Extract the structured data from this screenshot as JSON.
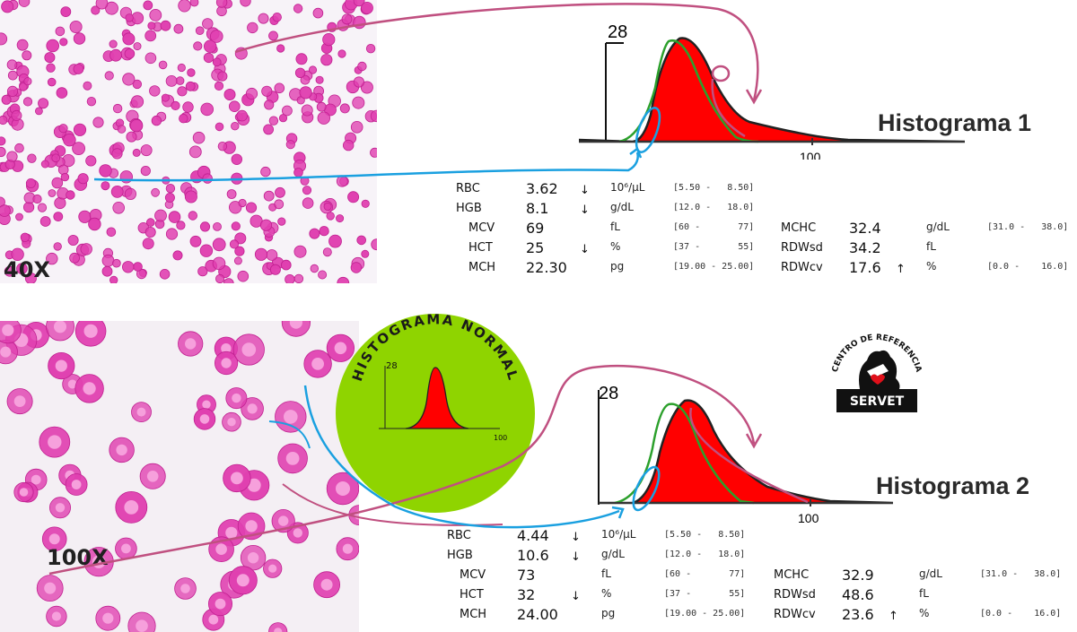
{
  "panels": {
    "top_magnification": "40X",
    "bottom_magnification": "100X"
  },
  "histogram1": {
    "title": "Histograma 1",
    "y_tick": "28",
    "x_tick": "100"
  },
  "histogram2": {
    "title": "Histograma 2",
    "y_tick": "28",
    "x_tick": "100"
  },
  "normal_badge": {
    "title": "HISTOGRAMA NORMAL",
    "y_tick": "28",
    "x_tick": "100"
  },
  "logo": {
    "arc_text": "CENTRO DE REFERENCIA",
    "name": "SERVET"
  },
  "table1": {
    "rows": [
      {
        "label": "RBC",
        "value": "3.62",
        "flag": "↓",
        "unit": "10⁶/μL",
        "range": "[5.50 -   8.50]"
      },
      {
        "label": "HGB",
        "value": "8.1",
        "flag": "↓",
        "unit": "g/dL",
        "range": "[12.0 -   18.0]"
      },
      {
        "label": "MCV",
        "value": "69",
        "flag": "",
        "unit": "fL",
        "range": "[60 -       77]"
      },
      {
        "label": "HCT",
        "value": "25",
        "flag": "↓",
        "unit": "%",
        "range": "[37 -       55]"
      },
      {
        "label": "MCH",
        "value": "22.30",
        "flag": "",
        "unit": "pg",
        "range": "[19.00 - 25.00]"
      }
    ],
    "rows_right": [
      {
        "label": "MCHC",
        "value": "32.4",
        "flag": "",
        "unit": "g/dL",
        "range": "[31.0 -   38.0]"
      },
      {
        "label": "RDWsd",
        "value": "34.2",
        "flag": "",
        "unit": "fL",
        "range": ""
      },
      {
        "label": "RDWcv",
        "value": "17.6",
        "flag": "↑",
        "unit": "%",
        "range": "[0.0 -    16.0]"
      }
    ]
  },
  "table2": {
    "rows": [
      {
        "label": "RBC",
        "value": "4.44",
        "flag": "↓",
        "unit": "10⁶/μL",
        "range": "[5.50 -   8.50]"
      },
      {
        "label": "HGB",
        "value": "10.6",
        "flag": "↓",
        "unit": "g/dL",
        "range": "[12.0 -   18.0]"
      },
      {
        "label": "MCV",
        "value": "73",
        "flag": "",
        "unit": "fL",
        "range": "[60 -       77]"
      },
      {
        "label": "HCT",
        "value": "32",
        "flag": "↓",
        "unit": "%",
        "range": "[37 -       55]"
      },
      {
        "label": "MCH",
        "value": "24.00",
        "flag": "",
        "unit": "pg",
        "range": "[19.00 - 25.00]"
      }
    ],
    "rows_right": [
      {
        "label": "MCHC",
        "value": "32.9",
        "flag": "",
        "unit": "g/dL",
        "range": "[31.0 -   38.0]"
      },
      {
        "label": "RDWsd",
        "value": "48.6",
        "flag": "",
        "unit": "fL",
        "range": ""
      },
      {
        "label": "RDWcv",
        "value": "23.6",
        "flag": "↑",
        "unit": "%",
        "range": "[0.0 -    16.0]"
      }
    ]
  },
  "colors": {
    "histogram_fill": "#ff0000",
    "normal_curve": "#2ca02c",
    "annotation_pink": "#c05080",
    "annotation_blue": "#1aa0e0",
    "rbc": "#e040b0",
    "badge_green": "#8fd400"
  }
}
